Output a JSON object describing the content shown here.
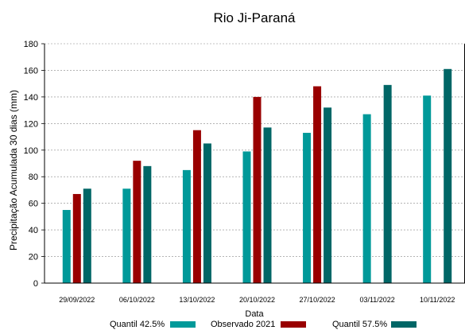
{
  "chart_data": {
    "type": "bar",
    "title": "Rio Ji-Paraná",
    "xlabel": "Data",
    "ylabel": "Precipitação Acumulada 30 dias (mm)",
    "categories": [
      "29/09/2022",
      "06/10/2022",
      "13/10/2022",
      "20/10/2022",
      "27/10/2022",
      "03/11/2022",
      "10/11/2022"
    ],
    "series": [
      {
        "name": "Quantil 42.5%",
        "color": "#009999",
        "values": [
          55,
          71,
          85,
          99,
          113,
          127,
          141
        ]
      },
      {
        "name": "Observado 2021",
        "color": "#990000",
        "values": [
          67,
          92,
          115,
          140,
          148,
          null,
          null
        ]
      },
      {
        "name": "Quantil 57.5%",
        "color": "#006666",
        "values": [
          71,
          88,
          105,
          117,
          132,
          149,
          161
        ]
      }
    ],
    "ylim": [
      0,
      180
    ],
    "yticks": [
      0,
      20,
      40,
      60,
      80,
      100,
      120,
      140,
      160,
      180
    ],
    "grid": true,
    "legend_position": "bottom"
  }
}
